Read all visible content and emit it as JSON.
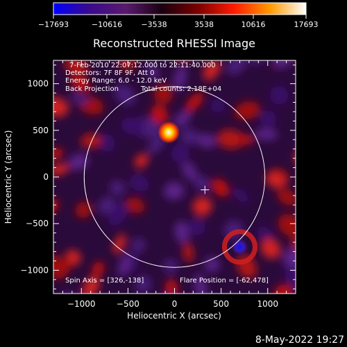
{
  "colorbar": {
    "ticks": [
      "-17693",
      "-10616",
      "-3538",
      "3538",
      "10616",
      "17693"
    ],
    "min": -17693,
    "max": 17693,
    "colors": [
      "#0000ff",
      "#3a0a8c",
      "#5a1a6e",
      "#1a0010",
      "#7a0000",
      "#ff1a00",
      "#ff9a00",
      "#ffffff"
    ]
  },
  "chart_data": {
    "type": "heatmap",
    "title": "Reconstructed RHESSI Image",
    "xlabel": "Heliocentric X (arcsec)",
    "ylabel": "Heliocentric Y (arcsec)",
    "xlim": [
      -1300,
      1300
    ],
    "ylim": [
      -1250,
      1250
    ],
    "xticks": [
      -1000,
      -500,
      0,
      500,
      1000
    ],
    "yticks": [
      -1000,
      -500,
      0,
      500,
      1000
    ],
    "xtick_labels": [
      "−1000",
      "−500",
      "0",
      "500",
      "1000"
    ],
    "ytick_labels": [
      "−1000",
      "−500",
      "0",
      "500",
      "1000"
    ],
    "annotations": [
      "7-Feb-2010 22:07:12.000 to 22:11:40.000",
      "Detectors: 7F 8F 9F, Att 0",
      "Energy Range: 6.0 - 12.0 keV",
      "Back Projection",
      "Total counts: 2.18E+04"
    ],
    "spin_axis_label": "Spin Axis = [326,-138]",
    "flare_position_label": "Flare Position = [-62,478]",
    "spin_axis": [
      326,
      -138
    ],
    "flare_position": [
      -62,
      478
    ],
    "solar_disk": {
      "center": [
        0,
        0
      ],
      "radius": 970
    },
    "sources": [
      {
        "kind": "peak",
        "x": -62,
        "y": 478,
        "value": 17693
      },
      {
        "kind": "trough",
        "x": 700,
        "y": -750,
        "value": -17693
      }
    ]
  },
  "footer": {
    "timestamp": "8-May-2022 19:27"
  }
}
